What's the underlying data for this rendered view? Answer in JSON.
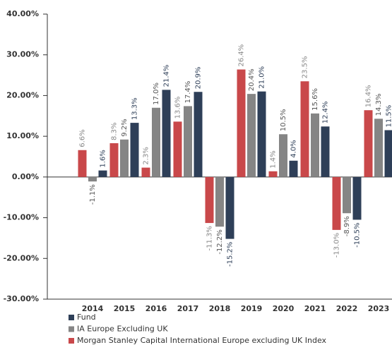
{
  "chart_data": {
    "type": "bar",
    "categories": [
      "2014",
      "2015",
      "2016",
      "2017",
      "2018",
      "2019",
      "2020",
      "2021",
      "2022",
      "2023"
    ],
    "series": [
      {
        "name": "Fund",
        "color": "#2e3f58",
        "values": [
          1.6,
          13.3,
          21.4,
          20.9,
          -15.2,
          21.0,
          4.0,
          12.4,
          -10.5,
          11.5
        ],
        "value_labels": [
          "1.6%",
          "13.3%",
          "21.4%",
          "20.9%",
          "-15.2%",
          "21.0%",
          "4.0%",
          "12.4%",
          "-10.5%",
          "11.5%"
        ]
      },
      {
        "name": "IA Europe Excluding UK",
        "color": "#858585",
        "values": [
          -1.1,
          9.2,
          17.0,
          17.4,
          -12.2,
          20.4,
          10.5,
          15.6,
          -8.9,
          14.3
        ],
        "value_labels": [
          "-1.1%",
          "9.2%",
          "17.0%",
          "17.4%",
          "-12.2%",
          "20.4%",
          "10.5%",
          "15.6%",
          "-8.9%",
          "14.3%"
        ]
      },
      {
        "name": "Morgan Stanley Capital International Europe excluding UK Index",
        "color": "#c9484a",
        "values": [
          6.6,
          8.3,
          2.3,
          13.6,
          -11.3,
          26.4,
          1.4,
          23.5,
          -13.0,
          16.4
        ],
        "value_labels": [
          "6.6%",
          "8.3%",
          "2.3%",
          "13.6%",
          "-11.3%",
          "26.4%",
          "1.4%",
          "23.5%",
          "-13.0%",
          "16.4%"
        ]
      }
    ],
    "ylim": [
      -30,
      40
    ],
    "yticks": [
      {
        "value": -30,
        "label": "-30.00%"
      },
      {
        "value": -20,
        "label": "-20.00%"
      },
      {
        "value": -10,
        "label": "-10.00%"
      },
      {
        "value": 0,
        "label": "0.00%"
      },
      {
        "value": 10,
        "label": "10.00%"
      },
      {
        "value": 20,
        "label": "20.00%"
      },
      {
        "value": 30,
        "label": "30.00%"
      },
      {
        "value": 40,
        "label": "40.00%"
      }
    ],
    "grid": false,
    "legend": "bottom"
  }
}
